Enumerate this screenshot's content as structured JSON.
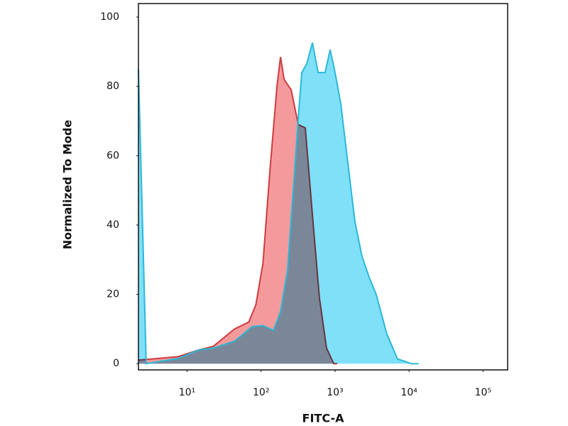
{
  "chart_data": {
    "type": "area",
    "x_label": "FITC-A",
    "y_label": "Normalized To Mode",
    "xscale": "log",
    "xlim": [
      2.2,
      215000
    ],
    "ylim": [
      -1.8,
      103.9
    ],
    "xticks": [
      {
        "value": 10,
        "label": "10¹"
      },
      {
        "value": 100,
        "label": "10²"
      },
      {
        "value": 1000,
        "label": "10³"
      },
      {
        "value": 10000,
        "label": "10⁴"
      },
      {
        "value": 100000,
        "label": "10⁵"
      }
    ],
    "yticks": [
      0,
      20,
      40,
      60,
      80,
      100
    ],
    "series": [
      {
        "color": "#f49a9c",
        "line_color": "#cf3b3f",
        "x": [
          2.2,
          7.5,
          14.5,
          22.6,
          43.7,
          68,
          85,
          106,
          132,
          164,
          183,
          205,
          255,
          318,
          396,
          494,
          615,
          766,
          957,
          1070
        ],
        "values": [
          1,
          2,
          4,
          5,
          10,
          12,
          17,
          29,
          56,
          80,
          88.5,
          82,
          79,
          69,
          68,
          43,
          19,
          4.5,
          0,
          0
        ]
      },
      {
        "color": "#7fe0f8",
        "line_color": "#2bb8d8",
        "x": [
          2.2,
          2.8,
          7.5,
          14.5,
          22.6,
          43.7,
          76,
          106,
          147,
          183,
          228,
          285,
          318,
          355,
          415,
          494,
          589,
          734,
          857,
          1000,
          1194,
          1487,
          1853,
          2310,
          2880,
          3590,
          5000,
          6950,
          10800,
          13500
        ],
        "values": [
          85,
          0,
          1.5,
          4,
          4.5,
          6.5,
          10.7,
          11,
          9.6,
          15,
          27,
          56,
          71,
          84,
          86.5,
          92.6,
          84,
          84,
          90.6,
          84,
          75,
          58,
          41,
          31,
          25,
          20,
          8.6,
          1.4,
          0,
          0
        ]
      }
    ]
  }
}
